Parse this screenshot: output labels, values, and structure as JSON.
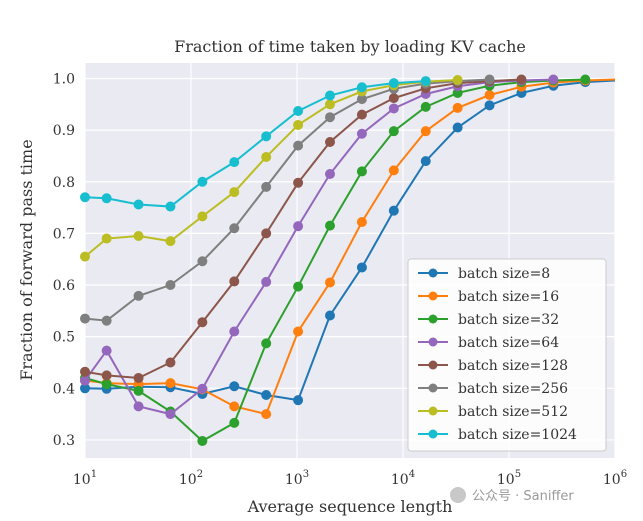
{
  "watermark": "公众号 · Saniffer",
  "chart_data": {
    "type": "line",
    "title": "Fraction of time taken by loading KV cache",
    "xlabel": "Average sequence length",
    "ylabel": "Fraction of forward pass time",
    "xscale": "log",
    "xlim": [
      10,
      1000000
    ],
    "ylim": [
      0.265,
      1.03
    ],
    "xticks": [
      {
        "value": 10,
        "base": "10",
        "exp": "1"
      },
      {
        "value": 100,
        "base": "10",
        "exp": "2"
      },
      {
        "value": 1000,
        "base": "10",
        "exp": "3"
      },
      {
        "value": 10000,
        "base": "10",
        "exp": "4"
      },
      {
        "value": 100000,
        "base": "10",
        "exp": "5"
      },
      {
        "value": 1000000,
        "base": "10",
        "exp": "6"
      }
    ],
    "yticks": [
      "0.3",
      "0.4",
      "0.5",
      "0.6",
      "0.7",
      "0.8",
      "0.9",
      "1.0"
    ],
    "grid": true,
    "legend_position": "lower-right",
    "background": "#eaeaf2",
    "series": [
      {
        "name": "batch size=8",
        "color": "#1f77b4",
        "x": [
          10,
          16,
          32,
          64,
          128,
          256,
          512,
          1024,
          2048,
          4096,
          8192,
          16384,
          32768,
          65536,
          131072,
          262144,
          524288,
          1048576
        ],
        "y": [
          0.4,
          0.399,
          0.403,
          0.402,
          0.389,
          0.404,
          0.387,
          0.377,
          0.541,
          0.634,
          0.744,
          0.84,
          0.905,
          0.948,
          0.972,
          0.986,
          0.993,
          0.996
        ]
      },
      {
        "name": "batch size=16",
        "color": "#ff7f0e",
        "x": [
          10,
          16,
          32,
          64,
          128,
          256,
          512,
          1024,
          2048,
          4096,
          8192,
          16384,
          32768,
          65536,
          131072,
          262144,
          524288,
          1048576
        ],
        "y": [
          0.415,
          0.41,
          0.408,
          0.41,
          0.398,
          0.365,
          0.35,
          0.51,
          0.605,
          0.722,
          0.822,
          0.898,
          0.943,
          0.968,
          0.984,
          0.992,
          0.996,
          0.998
        ]
      },
      {
        "name": "batch size=32",
        "color": "#2ca02c",
        "x": [
          10,
          16,
          32,
          64,
          128,
          256,
          512,
          1024,
          2048,
          4096,
          8192,
          16384,
          32768,
          65536,
          131072,
          262144,
          524288
        ],
        "y": [
          0.42,
          0.408,
          0.395,
          0.355,
          0.298,
          0.333,
          0.487,
          0.597,
          0.715,
          0.82,
          0.898,
          0.945,
          0.972,
          0.986,
          0.993,
          0.996,
          0.998
        ]
      },
      {
        "name": "batch size=64",
        "color": "#9467bd",
        "x": [
          10,
          16,
          32,
          64,
          128,
          256,
          512,
          1024,
          2048,
          4096,
          8192,
          16384,
          32768,
          65536,
          131072,
          262144
        ],
        "y": [
          0.415,
          0.473,
          0.365,
          0.35,
          0.399,
          0.51,
          0.606,
          0.714,
          0.815,
          0.893,
          0.942,
          0.97,
          0.985,
          0.993,
          0.996,
          0.998
        ]
      },
      {
        "name": "batch size=128",
        "color": "#8c564b",
        "x": [
          10,
          16,
          32,
          64,
          128,
          256,
          512,
          1024,
          2048,
          4096,
          8192,
          16384,
          32768,
          65536,
          131072
        ],
        "y": [
          0.432,
          0.425,
          0.42,
          0.45,
          0.528,
          0.607,
          0.7,
          0.798,
          0.877,
          0.93,
          0.962,
          0.981,
          0.991,
          0.995,
          0.998
        ]
      },
      {
        "name": "batch size=256",
        "color": "#7f7f7f",
        "x": [
          10,
          16,
          32,
          64,
          128,
          256,
          512,
          1024,
          2048,
          4096,
          8192,
          16384,
          32768,
          65536
        ],
        "y": [
          0.535,
          0.531,
          0.579,
          0.6,
          0.646,
          0.71,
          0.79,
          0.87,
          0.925,
          0.96,
          0.98,
          0.99,
          0.995,
          0.998
        ]
      },
      {
        "name": "batch size=512",
        "color": "#bcbd22",
        "x": [
          10,
          16,
          32,
          64,
          128,
          256,
          512,
          1024,
          2048,
          4096,
          8192,
          16384,
          32768
        ],
        "y": [
          0.655,
          0.69,
          0.695,
          0.685,
          0.733,
          0.78,
          0.848,
          0.91,
          0.95,
          0.975,
          0.987,
          0.994,
          0.997
        ]
      },
      {
        "name": "batch size=1024",
        "color": "#17becf",
        "x": [
          10,
          16,
          32,
          64,
          128,
          256,
          512,
          1024,
          2048,
          4096,
          8192,
          16384
        ],
        "y": [
          0.77,
          0.768,
          0.756,
          0.752,
          0.8,
          0.838,
          0.888,
          0.937,
          0.967,
          0.983,
          0.991,
          0.995
        ]
      }
    ]
  }
}
